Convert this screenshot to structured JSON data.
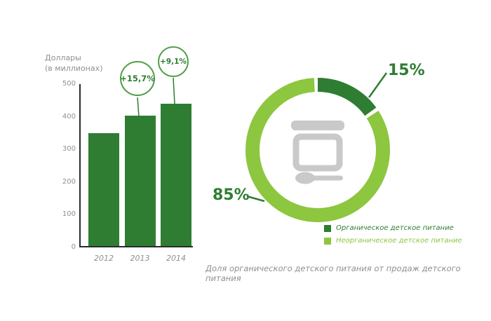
{
  "page": {
    "background": "#ffffff"
  },
  "colors": {
    "dark_green": "#2e7d32",
    "light_green": "#8dc63f",
    "bubble_border": "#4f9d45",
    "icon_gray": "#c9c9c9",
    "muted_text": "#8f8f8f",
    "axis_line": "#2b2b2b"
  },
  "chart_data": [
    {
      "type": "bar",
      "title": "",
      "ylabel": "Доллары (в миллионах)",
      "ylabel_lines": [
        "Доллары",
        "(в миллионах)"
      ],
      "categories": [
        "2012",
        "2013",
        "2014"
      ],
      "values": [
        345,
        399,
        435
      ],
      "ylim": [
        0,
        500
      ],
      "yticks": [
        0,
        100,
        200,
        300,
        400,
        500
      ],
      "bar_color": "#2e7d32",
      "grid": false,
      "annotations": [
        {
          "category": "2013",
          "label": "+15,7%"
        },
        {
          "category": "2014",
          "label": "+9,1%"
        }
      ]
    },
    {
      "type": "pie",
      "style": "donut",
      "slices": [
        {
          "label": "Органическое детское питание",
          "value": 15,
          "color": "#2e7d32",
          "callout": "15%"
        },
        {
          "label": "Неорганическое детское питание",
          "value": 85,
          "color": "#8dc63f",
          "callout": "85%"
        }
      ],
      "legend_position": "bottom-right",
      "center_icon": "baby-food-jar-spoon-icon",
      "caption": "Доля органического детского питания от продаж детского питания"
    }
  ]
}
